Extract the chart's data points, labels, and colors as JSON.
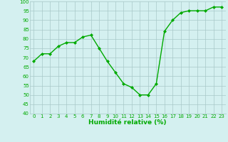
{
  "x": [
    0,
    1,
    2,
    3,
    4,
    5,
    6,
    7,
    8,
    9,
    10,
    11,
    12,
    13,
    14,
    15,
    16,
    17,
    18,
    19,
    20,
    21,
    22,
    23
  ],
  "y": [
    68,
    72,
    72,
    76,
    78,
    78,
    81,
    82,
    75,
    68,
    62,
    56,
    54,
    50,
    50,
    56,
    84,
    90,
    94,
    95,
    95,
    95,
    97,
    97
  ],
  "line_color": "#00aa00",
  "marker": "D",
  "marker_size": 2.0,
  "bg_color": "#d4f0f0",
  "grid_color": "#a8c8c8",
  "xlabel": "Humidité relative (%)",
  "xlabel_color": "#00aa00",
  "ylim": [
    40,
    100
  ],
  "xlim": [
    -0.5,
    23.5
  ],
  "yticks": [
    40,
    45,
    50,
    55,
    60,
    65,
    70,
    75,
    80,
    85,
    90,
    95,
    100
  ],
  "xticks": [
    0,
    1,
    2,
    3,
    4,
    5,
    6,
    7,
    8,
    9,
    10,
    11,
    12,
    13,
    14,
    15,
    16,
    17,
    18,
    19,
    20,
    21,
    22,
    23
  ],
  "tick_label_color": "#00aa00",
  "tick_label_fontsize": 5.0,
  "xlabel_fontsize": 6.5,
  "linewidth": 1.0
}
